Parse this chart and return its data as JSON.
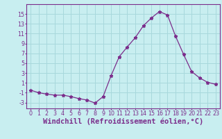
{
  "x": [
    0,
    1,
    2,
    3,
    4,
    5,
    6,
    7,
    8,
    9,
    10,
    11,
    12,
    13,
    14,
    15,
    16,
    17,
    18,
    19,
    20,
    21,
    22,
    23
  ],
  "y": [
    -0.5,
    -1.0,
    -1.3,
    -1.5,
    -1.5,
    -1.8,
    -2.2,
    -2.5,
    -3.1,
    -1.8,
    2.5,
    6.3,
    8.3,
    10.2,
    12.6,
    14.2,
    15.5,
    14.8,
    10.5,
    6.8,
    3.3,
    2.0,
    1.1,
    0.7
  ],
  "line_color": "#7b2d8b",
  "marker": "*",
  "marker_size": 3.5,
  "bg_color": "#c8eef0",
  "grid_color": "#a8d8dc",
  "xlabel": "Windchill (Refroidissement éolien,°C)",
  "xlim": [
    -0.5,
    23.5
  ],
  "ylim": [
    -4.2,
    17.0
  ],
  "yticks": [
    -3,
    -1,
    1,
    3,
    5,
    7,
    9,
    11,
    13,
    15
  ],
  "xticks": [
    0,
    1,
    2,
    3,
    4,
    5,
    6,
    7,
    8,
    9,
    10,
    11,
    12,
    13,
    14,
    15,
    16,
    17,
    18,
    19,
    20,
    21,
    22,
    23
  ],
  "tick_fontsize": 5.8,
  "xlabel_fontsize": 7.5
}
